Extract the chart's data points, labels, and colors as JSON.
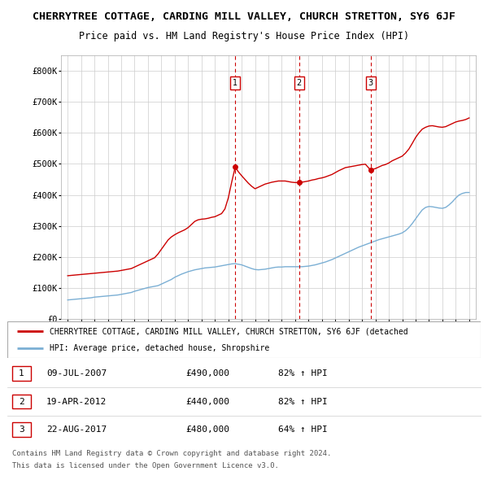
{
  "title": "CHERRYTREE COTTAGE, CARDING MILL VALLEY, CHURCH STRETTON, SY6 6JF",
  "subtitle": "Price paid vs. HM Land Registry's House Price Index (HPI)",
  "title_fontsize": 9.5,
  "subtitle_fontsize": 8.5,
  "ylim": [
    0,
    850000
  ],
  "yticks": [
    0,
    100000,
    200000,
    300000,
    400000,
    500000,
    600000,
    700000,
    800000
  ],
  "ytick_labels": [
    "£0",
    "£100K",
    "£200K",
    "£300K",
    "£400K",
    "£500K",
    "£600K",
    "£700K",
    "£800K"
  ],
  "sale_dates": [
    2007.52,
    2012.3,
    2017.64
  ],
  "sale_prices": [
    490000,
    440000,
    480000
  ],
  "sale_labels": [
    "1",
    "2",
    "3"
  ],
  "sale_date_strs": [
    "09-JUL-2007",
    "19-APR-2012",
    "22-AUG-2017"
  ],
  "sale_pct": [
    "82%",
    "82%",
    "64%"
  ],
  "sale_prices_str": [
    "£490,000",
    "£440,000",
    "£480,000"
  ],
  "red_line_color": "#cc0000",
  "blue_line_color": "#7bafd4",
  "dashed_line_color": "#cc0000",
  "background_color": "#ffffff",
  "grid_color": "#cccccc",
  "legend_label_red": "CHERRYTREE COTTAGE, CARDING MILL VALLEY, CHURCH STRETTON, SY6 6JF (detached",
  "legend_label_blue": "HPI: Average price, detached house, Shropshire",
  "footer1": "Contains HM Land Registry data © Crown copyright and database right 2024.",
  "footer2": "This data is licensed under the Open Government Licence v3.0.",
  "hpi_years": [
    1995.0,
    1995.25,
    1995.5,
    1995.75,
    1996.0,
    1996.25,
    1996.5,
    1996.75,
    1997.0,
    1997.25,
    1997.5,
    1997.75,
    1998.0,
    1998.25,
    1998.5,
    1998.75,
    1999.0,
    1999.25,
    1999.5,
    1999.75,
    2000.0,
    2000.25,
    2000.5,
    2000.75,
    2001.0,
    2001.25,
    2001.5,
    2001.75,
    2002.0,
    2002.25,
    2002.5,
    2002.75,
    2003.0,
    2003.25,
    2003.5,
    2003.75,
    2004.0,
    2004.25,
    2004.5,
    2004.75,
    2005.0,
    2005.25,
    2005.5,
    2005.75,
    2006.0,
    2006.25,
    2006.5,
    2006.75,
    2007.0,
    2007.25,
    2007.5,
    2007.75,
    2008.0,
    2008.25,
    2008.5,
    2008.75,
    2009.0,
    2009.25,
    2009.5,
    2009.75,
    2010.0,
    2010.25,
    2010.5,
    2010.75,
    2011.0,
    2011.25,
    2011.5,
    2011.75,
    2012.0,
    2012.25,
    2012.5,
    2012.75,
    2013.0,
    2013.25,
    2013.5,
    2013.75,
    2014.0,
    2014.25,
    2014.5,
    2014.75,
    2015.0,
    2015.25,
    2015.5,
    2015.75,
    2016.0,
    2016.25,
    2016.5,
    2016.75,
    2017.0,
    2017.25,
    2017.5,
    2017.75,
    2018.0,
    2018.25,
    2018.5,
    2018.75,
    2019.0,
    2019.25,
    2019.5,
    2019.75,
    2020.0,
    2020.25,
    2020.5,
    2020.75,
    2021.0,
    2021.25,
    2021.5,
    2021.75,
    2022.0,
    2022.25,
    2022.5,
    2022.75,
    2023.0,
    2023.25,
    2023.5,
    2023.75,
    2024.0,
    2024.25,
    2024.5,
    2024.75,
    2025.0
  ],
  "hpi_values": [
    62000,
    63000,
    64000,
    65000,
    66000,
    67000,
    68000,
    69000,
    71000,
    72000,
    73000,
    74000,
    75000,
    76000,
    77000,
    78000,
    80000,
    82000,
    84000,
    86000,
    90000,
    93000,
    96000,
    99000,
    102000,
    104000,
    106000,
    108000,
    113000,
    118000,
    123000,
    128000,
    135000,
    140000,
    145000,
    149000,
    153000,
    156000,
    159000,
    161000,
    163000,
    165000,
    166000,
    167000,
    168000,
    170000,
    172000,
    174000,
    176000,
    178000,
    179000,
    177000,
    175000,
    171000,
    167000,
    163000,
    160000,
    159000,
    160000,
    161000,
    163000,
    165000,
    167000,
    168000,
    168000,
    169000,
    169000,
    169000,
    169000,
    169000,
    169000,
    170000,
    171000,
    173000,
    175000,
    178000,
    181000,
    184000,
    188000,
    192000,
    197000,
    202000,
    207000,
    212000,
    217000,
    222000,
    227000,
    232000,
    236000,
    240000,
    244000,
    248000,
    252000,
    256000,
    259000,
    262000,
    265000,
    268000,
    271000,
    274000,
    278000,
    285000,
    295000,
    308000,
    323000,
    338000,
    352000,
    360000,
    363000,
    362000,
    360000,
    358000,
    357000,
    360000,
    368000,
    378000,
    390000,
    400000,
    405000,
    408000,
    408000
  ],
  "red_years": [
    1995.0,
    1995.25,
    1995.5,
    1995.75,
    1996.0,
    1996.25,
    1996.5,
    1996.75,
    1997.0,
    1997.25,
    1997.5,
    1997.75,
    1998.0,
    1998.25,
    1998.5,
    1998.75,
    1999.0,
    1999.25,
    1999.5,
    1999.75,
    2000.0,
    2000.25,
    2000.5,
    2000.75,
    2001.0,
    2001.25,
    2001.5,
    2001.75,
    2002.0,
    2002.25,
    2002.5,
    2002.75,
    2003.0,
    2003.25,
    2003.5,
    2003.75,
    2004.0,
    2004.25,
    2004.5,
    2004.75,
    2005.0,
    2005.25,
    2005.5,
    2005.75,
    2006.0,
    2006.25,
    2006.5,
    2006.75,
    2007.0,
    2007.25,
    2007.52,
    2007.75,
    2008.0,
    2008.25,
    2008.5,
    2008.75,
    2009.0,
    2009.25,
    2009.5,
    2009.75,
    2010.0,
    2010.25,
    2010.5,
    2010.75,
    2011.0,
    2011.25,
    2011.5,
    2011.75,
    2012.0,
    2012.3,
    2012.5,
    2012.75,
    2013.0,
    2013.25,
    2013.5,
    2013.75,
    2014.0,
    2014.25,
    2014.5,
    2014.75,
    2015.0,
    2015.25,
    2015.5,
    2015.75,
    2016.0,
    2016.25,
    2016.5,
    2016.75,
    2017.0,
    2017.25,
    2017.64,
    2017.75,
    2018.0,
    2018.25,
    2018.5,
    2018.75,
    2019.0,
    2019.25,
    2019.5,
    2019.75,
    2020.0,
    2020.25,
    2020.5,
    2020.75,
    2021.0,
    2021.25,
    2021.5,
    2021.75,
    2022.0,
    2022.25,
    2022.5,
    2022.75,
    2023.0,
    2023.25,
    2023.5,
    2023.75,
    2024.0,
    2024.25,
    2024.5,
    2024.75,
    2025.0
  ],
  "red_values": [
    140000,
    141000,
    142000,
    143000,
    144000,
    145000,
    146000,
    147000,
    148000,
    149000,
    150000,
    151000,
    152000,
    153000,
    154000,
    155000,
    157000,
    159000,
    161000,
    163000,
    168000,
    173000,
    178000,
    183000,
    188000,
    193000,
    198000,
    210000,
    225000,
    240000,
    255000,
    265000,
    272000,
    278000,
    283000,
    288000,
    295000,
    305000,
    315000,
    320000,
    322000,
    323000,
    325000,
    328000,
    330000,
    335000,
    340000,
    355000,
    390000,
    440000,
    490000,
    475000,
    462000,
    450000,
    438000,
    428000,
    420000,
    425000,
    430000,
    435000,
    438000,
    441000,
    443000,
    445000,
    445000,
    445000,
    443000,
    441000,
    440000,
    440000,
    441000,
    443000,
    445000,
    448000,
    450000,
    453000,
    455000,
    458000,
    462000,
    466000,
    472000,
    478000,
    483000,
    488000,
    490000,
    492000,
    494000,
    496000,
    498000,
    499000,
    480000,
    482000,
    485000,
    490000,
    495000,
    498000,
    503000,
    510000,
    515000,
    520000,
    525000,
    535000,
    548000,
    566000,
    585000,
    600000,
    612000,
    618000,
    622000,
    623000,
    621000,
    619000,
    618000,
    620000,
    625000,
    630000,
    635000,
    638000,
    640000,
    643000,
    648000
  ]
}
